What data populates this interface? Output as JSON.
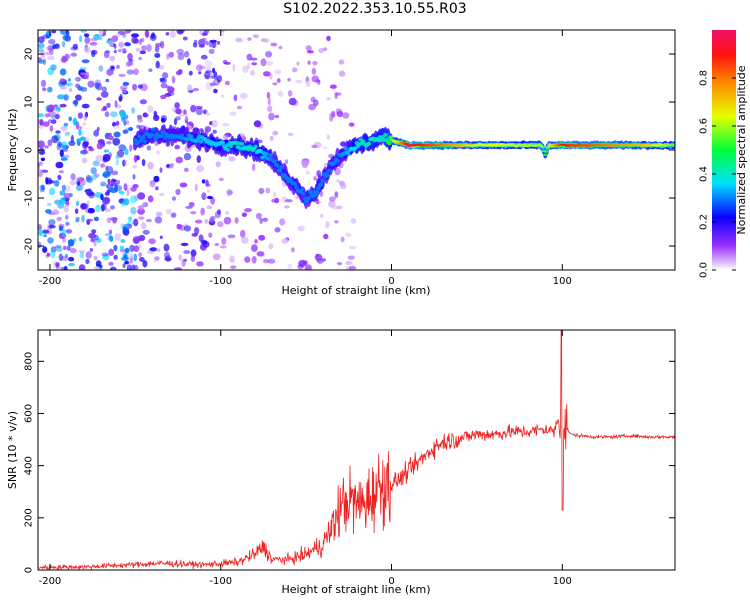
{
  "title": "S102.2022.353.10.55.R03",
  "chart_data": [
    {
      "type": "heatmap",
      "xlabel": "Height of straight line (km)",
      "ylabel": "Frequency (Hz)",
      "xlim": [
        -207,
        166
      ],
      "ylim": [
        -25,
        25
      ],
      "xticks": [
        -200,
        -100,
        0,
        100
      ],
      "yticks": [
        -20,
        -10,
        0,
        10,
        20
      ],
      "colorbar": {
        "label": "Normalized spectral amplitude",
        "range": [
          0,
          1
        ],
        "ticks": [
          0.0,
          0.2,
          0.4,
          0.6,
          0.8
        ],
        "tick_labels": [
          "0.0",
          "0.2",
          "0.4",
          "0.6",
          "0.8"
        ],
        "colormap": "rainbow (white, violet, blue, cyan, green, yellow, orange, red, magenta)"
      },
      "ridge": {
        "description": "frequency of maximum spectral amplitude vs height",
        "x": [
          -150,
          -140,
          -125,
          -110,
          -100,
          -90,
          -80,
          -70,
          -60,
          -55,
          -50,
          -45,
          -40,
          -35,
          -30,
          -25,
          -20,
          -10,
          -5,
          0,
          10,
          50,
          88,
          90,
          92,
          100,
          150,
          166
        ],
        "y": [
          2,
          3,
          3,
          2,
          1,
          1,
          0,
          -2,
          -6,
          -8,
          -10,
          -9,
          -6,
          -3,
          -1,
          0,
          1,
          2,
          3,
          2,
          1,
          1,
          1,
          -1,
          1,
          1,
          1,
          1
        ],
        "amplitude": [
          0.3,
          0.3,
          0.3,
          0.35,
          0.35,
          0.4,
          0.4,
          0.3,
          0.3,
          0.3,
          0.3,
          0.3,
          0.3,
          0.3,
          0.3,
          0.35,
          0.4,
          0.4,
          0.4,
          0.55,
          0.95,
          0.65,
          0.6,
          0.5,
          0.6,
          0.9,
          0.7,
          0.55
        ]
      }
    },
    {
      "type": "line",
      "xlabel": "Height of straight line (km)",
      "ylabel": "SNR (10 * v/v)",
      "xlim": [
        -207,
        166
      ],
      "ylim": [
        0,
        920
      ],
      "xticks": [
        -200,
        -100,
        0,
        100
      ],
      "yticks": [
        0,
        200,
        400,
        600,
        800
      ],
      "color": "#ee2222",
      "series": [
        {
          "x": [
            -207,
            -180,
            -160,
            -150,
            -140,
            -130,
            -120,
            -110,
            -100,
            -90,
            -80,
            -75,
            -70,
            -60,
            -50,
            -40,
            -35,
            -30,
            -25,
            -20,
            -15,
            -10,
            -5,
            0,
            5,
            10,
            15,
            20,
            25,
            30,
            40,
            50,
            60,
            70,
            80,
            90,
            95,
            99,
            100,
            101,
            105,
            110,
            120,
            130,
            140,
            150,
            160,
            166
          ],
          "y": [
            10,
            12,
            18,
            20,
            25,
            25,
            22,
            20,
            25,
            30,
            60,
            90,
            40,
            40,
            60,
            100,
            160,
            240,
            270,
            250,
            260,
            300,
            330,
            330,
            350,
            380,
            410,
            440,
            470,
            490,
            505,
            520,
            520,
            530,
            530,
            540,
            530,
            600,
            500,
            560,
            520,
            515,
            510,
            510,
            515,
            510,
            510,
            510
          ]
        }
      ]
    }
  ]
}
